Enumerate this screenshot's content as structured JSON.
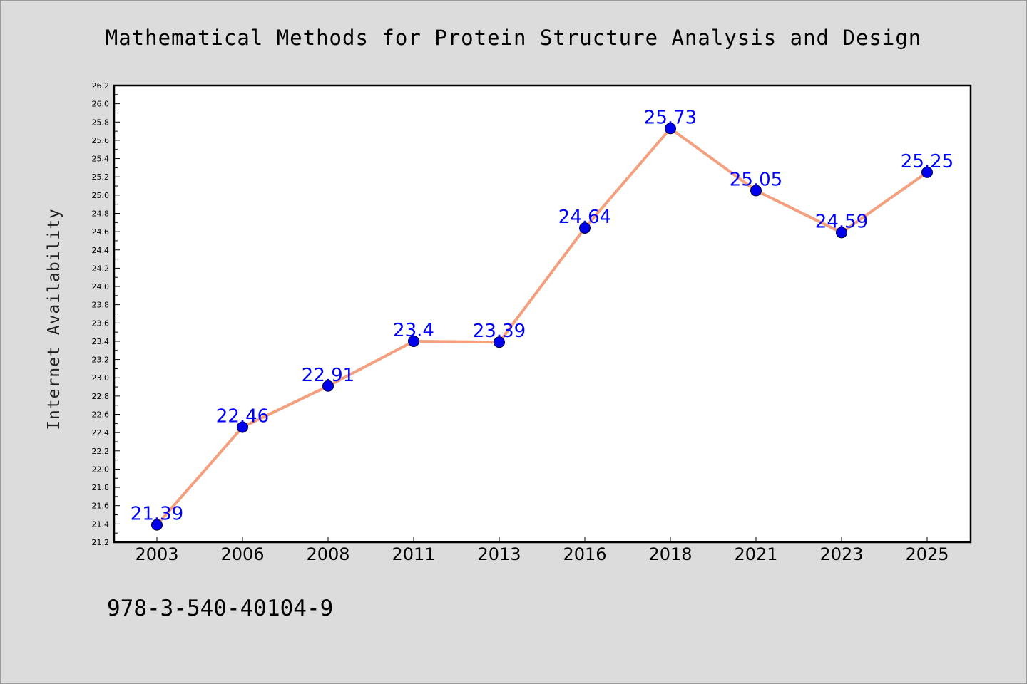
{
  "chart_data": {
    "type": "line",
    "title": "Mathematical Methods for Protein Structure Analysis and Design",
    "xlabel": "",
    "ylabel": "Internet Availability",
    "categories": [
      "2003",
      "2006",
      "2008",
      "2011",
      "2013",
      "2016",
      "2018",
      "2021",
      "2023",
      "2025"
    ],
    "series": [
      {
        "values": [
          21.39,
          22.46,
          22.91,
          23.4,
          23.39,
          24.64,
          25.73,
          25.05,
          24.59,
          25.25
        ],
        "labels": [
          "21.39",
          "22.46",
          "22.91",
          "23.4",
          "23.39",
          "24.64",
          "25.73",
          "25.05",
          "24.59",
          "25.25"
        ],
        "line_color": "#f4a07f",
        "marker_color": "#0000ee"
      }
    ],
    "ylim": [
      21.2,
      26.2
    ],
    "y_ticks": [
      "21.2",
      "21.4",
      "21.6",
      "21.8",
      "22.0",
      "22.2",
      "22.4",
      "22.6",
      "22.8",
      "23.0",
      "23.2",
      "23.4",
      "23.6",
      "23.8",
      "24.0",
      "24.2",
      "24.4",
      "24.6",
      "24.8",
      "25.0",
      "25.2",
      "25.4",
      "25.6",
      "25.8",
      "26.0",
      "26.2"
    ],
    "grid": false,
    "legend": "none"
  },
  "footer_text": "978-3-540-40104-9",
  "colors": {
    "background": "#dcdcdc",
    "plot_background": "#ffffff",
    "label_color": "#0000ff"
  }
}
